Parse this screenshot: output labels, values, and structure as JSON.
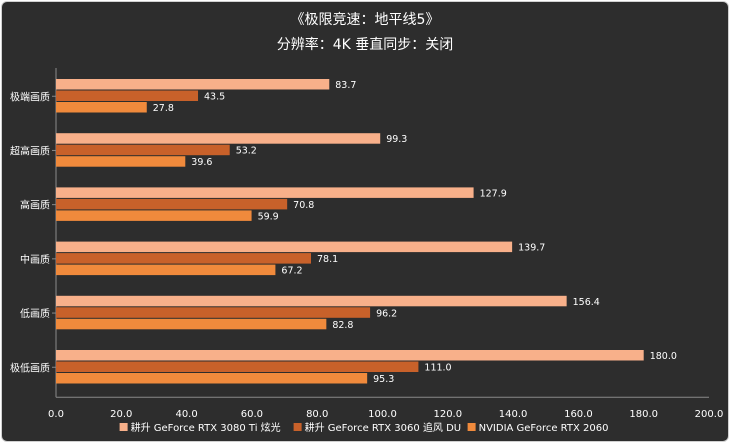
{
  "chart_data": {
    "type": "bar",
    "orientation": "horizontal",
    "title": "《极限竞速：地平线5》",
    "subtitle": "分辨率：4K 垂直同步：关闭",
    "categories": [
      "极端画质",
      "超高画质",
      "高画质",
      "中画质",
      "低画质",
      "极低画质"
    ],
    "series": [
      {
        "name": "耕升 GeForce RTX 3080 Ti 炫光",
        "color": "#f8b08a",
        "values": [
          83.7,
          99.3,
          127.9,
          139.7,
          156.4,
          180.0
        ]
      },
      {
        "name": "耕升 GeForce RTX 3060 追风 DU",
        "color": "#c8612a",
        "values": [
          43.5,
          53.2,
          70.8,
          78.1,
          96.2,
          111.0
        ]
      },
      {
        "name": "NVIDIA GeForce RTX 2060",
        "color": "#f08a3c",
        "values": [
          27.8,
          39.6,
          59.9,
          67.2,
          82.8,
          95.3
        ]
      }
    ],
    "xlim": [
      0,
      200
    ],
    "xticks": [
      "0.0",
      "20.0",
      "40.0",
      "60.0",
      "80.0",
      "100.0",
      "120.0",
      "140.0",
      "160.0",
      "180.0",
      "200.0"
    ],
    "value_labels": [
      [
        "83.7",
        "99.3",
        "127.9",
        "139.7",
        "156.4",
        "180.0"
      ],
      [
        "43.5",
        "53.2",
        "70.8",
        "78.1",
        "96.2",
        "111.0"
      ],
      [
        "27.8",
        "39.6",
        "59.9",
        "67.2",
        "82.8",
        "95.3"
      ]
    ],
    "grid": false,
    "legend": "bottom"
  }
}
